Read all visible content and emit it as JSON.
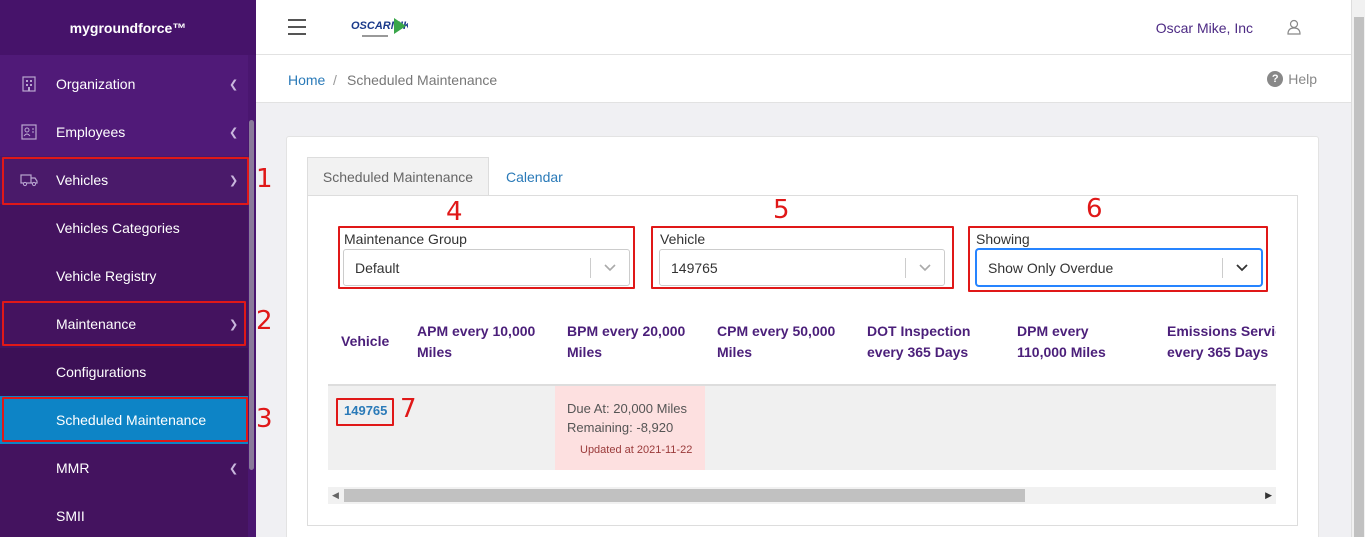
{
  "brand": "mygroundforce™",
  "sidebar": {
    "items": [
      {
        "label": "Organization",
        "icon": "building-icon"
      },
      {
        "label": "Employees",
        "icon": "contact-card-icon"
      },
      {
        "label": "Vehicles",
        "icon": "truck-icon"
      },
      {
        "label": "Vehicles Categories"
      },
      {
        "label": "Vehicle Registry"
      },
      {
        "label": "Maintenance"
      },
      {
        "label": "Configurations"
      },
      {
        "label": "Scheduled Maintenance"
      },
      {
        "label": "MMR"
      },
      {
        "label": "SMII"
      }
    ]
  },
  "header": {
    "company": "Oscar Mike, Inc",
    "logo_text": "OSCARMIKE"
  },
  "breadcrumb": {
    "home": "Home",
    "separator": "/",
    "current": "Scheduled Maintenance",
    "help": "Help",
    "help_glyph": "?"
  },
  "tabs": [
    {
      "label": "Scheduled Maintenance",
      "active": true
    },
    {
      "label": "Calendar",
      "active": false
    }
  ],
  "filters": {
    "maintenance_group": {
      "label": "Maintenance Group",
      "value": "Default"
    },
    "vehicle": {
      "label": "Vehicle",
      "value": "149765"
    },
    "showing": {
      "label": "Showing",
      "value": "Show Only Overdue"
    }
  },
  "table": {
    "columns": [
      {
        "line1": "Vehicle",
        "line2": ""
      },
      {
        "line1": "APM every 10,000",
        "line2": "Miles"
      },
      {
        "line1": "BPM every 20,000",
        "line2": "Miles"
      },
      {
        "line1": "CPM every 50,000",
        "line2": "Miles"
      },
      {
        "line1": "DOT Inspection",
        "line2": "every 365 Days"
      },
      {
        "line1": "DPM every",
        "line2": "110,000 Miles"
      },
      {
        "line1": "Emissions Servic",
        "line2": "every 365 Days"
      }
    ],
    "rows": [
      {
        "vehicle": "149765",
        "bpm": {
          "due": "Due At: 20,000 Miles",
          "remaining": "Remaining: -8,920",
          "updated": "Updated at 2021-11-22"
        }
      }
    ]
  },
  "annotations": [
    "1",
    "2",
    "3",
    "4",
    "5",
    "6",
    "7"
  ],
  "colors": {
    "sidebar": "#501a78",
    "active": "#0d84c6",
    "annotation": "#e01818",
    "overdue": "#fde0e0"
  }
}
